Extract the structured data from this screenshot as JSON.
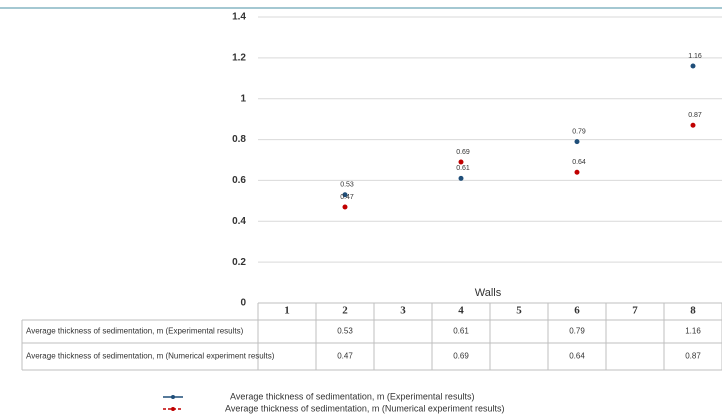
{
  "chart_data": {
    "type": "scatter",
    "x_label": "Walls",
    "categories": [
      "1",
      "2",
      "3",
      "4",
      "5",
      "6",
      "7",
      "8"
    ],
    "series": [
      {
        "name": "Average thickness of sedimentation, m (Experimental results)",
        "color": "#1f4e79",
        "values": [
          null,
          0.53,
          null,
          0.61,
          null,
          0.79,
          null,
          1.16
        ]
      },
      {
        "name": "Average thickness of sedimentation, m (Numerical experiment results)",
        "color": "#c00000",
        "values": [
          null,
          0.47,
          null,
          0.69,
          null,
          0.64,
          null,
          0.87
        ]
      }
    ],
    "ylim": [
      0,
      1.4
    ],
    "yticks": [
      0,
      0.2,
      0.4,
      0.6,
      0.8,
      1,
      1.2,
      1.4
    ],
    "grid": true
  }
}
